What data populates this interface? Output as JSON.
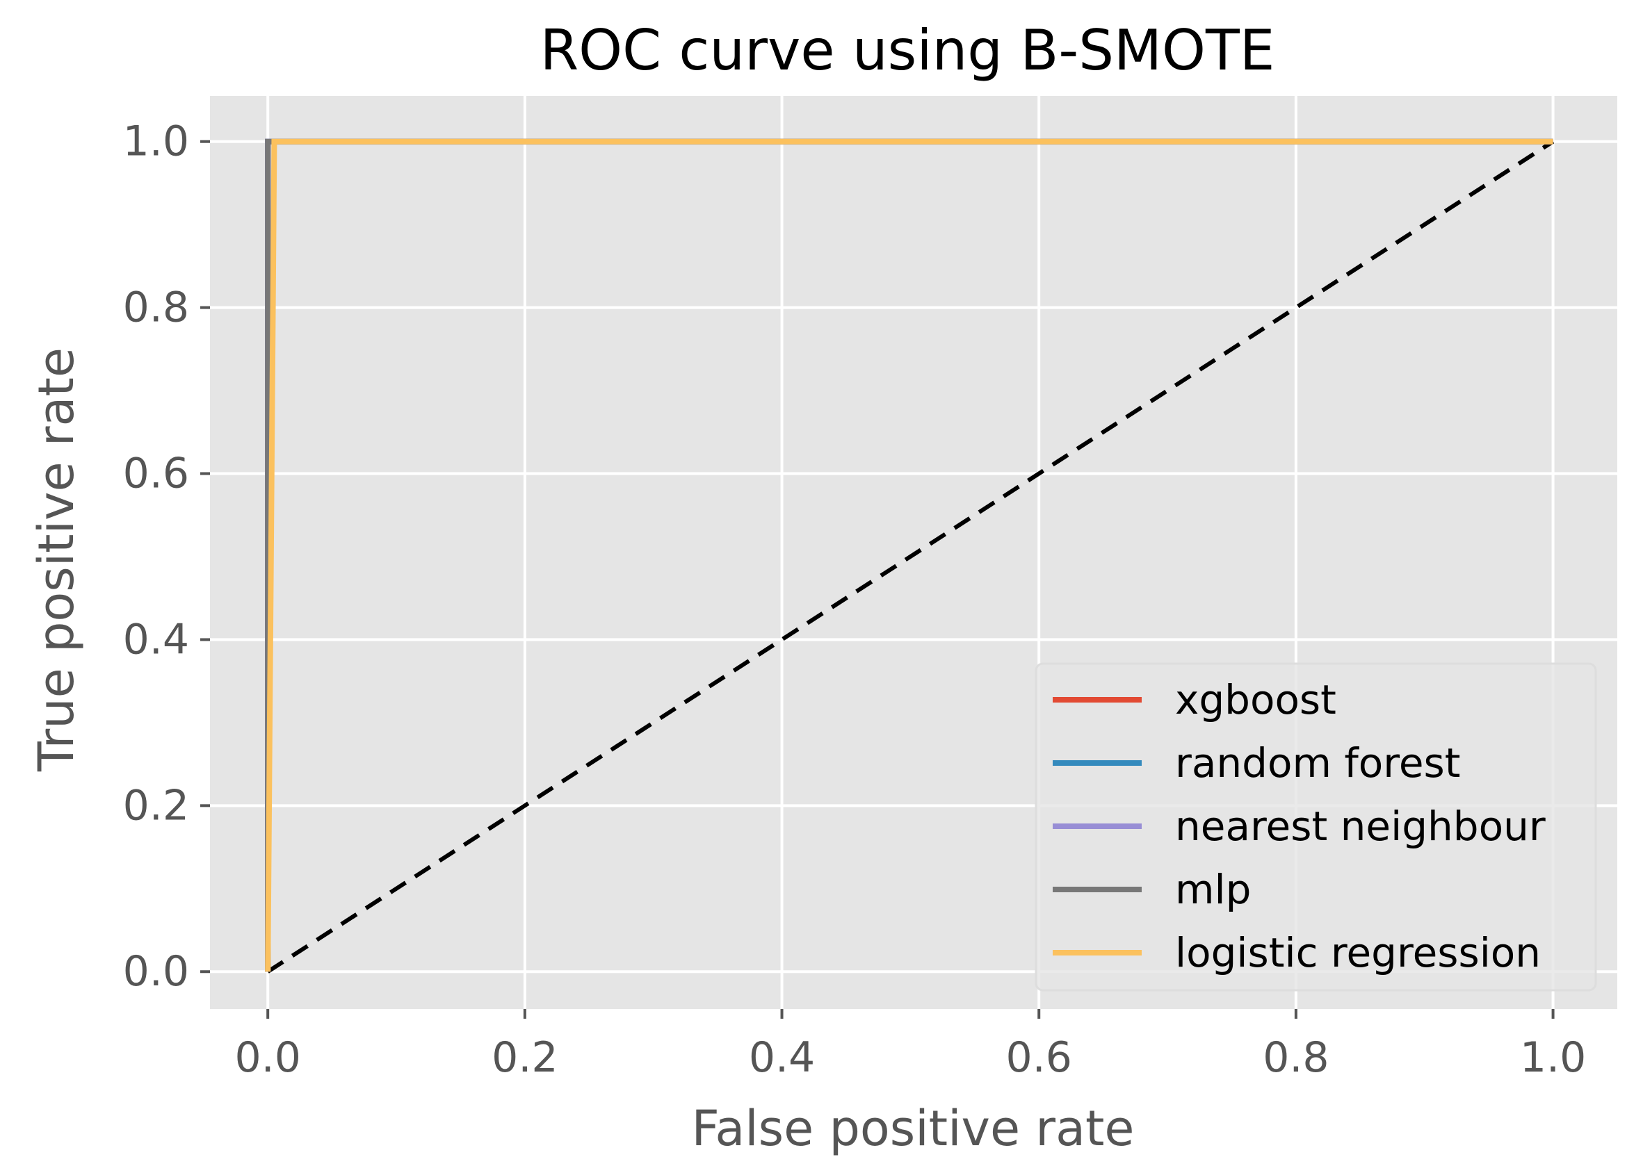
{
  "chart_data": {
    "type": "line",
    "title": "ROC curve using B-SMOTE",
    "xlabel": "False positive rate",
    "ylabel": "True positive rate",
    "xlim": [
      -0.045,
      1.05
    ],
    "ylim": [
      -0.045,
      1.055
    ],
    "xticks": [
      0.0,
      0.2,
      0.4,
      0.6,
      0.8,
      1.0
    ],
    "xtick_labels": [
      "0.0",
      "0.2",
      "0.4",
      "0.6",
      "0.8",
      "1.0"
    ],
    "yticks": [
      0.0,
      0.2,
      0.4,
      0.6,
      0.8,
      1.0
    ],
    "ytick_labels": [
      "0.0",
      "0.2",
      "0.4",
      "0.6",
      "0.8",
      "1.0"
    ],
    "grid": true,
    "legend_position": "lower-right",
    "series": [
      {
        "name": "xgboost",
        "color": "#E24A33",
        "x": [
          0.0,
          0.0,
          1.0
        ],
        "y": [
          0.0,
          1.0,
          1.0
        ]
      },
      {
        "name": "random forest",
        "color": "#348ABD",
        "x": [
          0.0,
          0.0,
          1.0
        ],
        "y": [
          0.0,
          1.0,
          1.0
        ]
      },
      {
        "name": "nearest neighbour",
        "color": "#988ED5",
        "x": [
          0.0,
          0.0,
          1.0
        ],
        "y": [
          0.0,
          1.0,
          1.0
        ]
      },
      {
        "name": "mlp",
        "color": "#777777",
        "x": [
          0.0,
          0.0,
          1.0
        ],
        "y": [
          0.0,
          1.0,
          1.0
        ]
      },
      {
        "name": "logistic regression",
        "color": "#FBC15E",
        "x": [
          0.0,
          0.005,
          1.0
        ],
        "y": [
          0.0,
          1.0,
          1.0
        ]
      }
    ],
    "reference_line": {
      "x": [
        0,
        1
      ],
      "y": [
        0,
        1
      ],
      "style": "dashed",
      "color": "#000000"
    }
  }
}
